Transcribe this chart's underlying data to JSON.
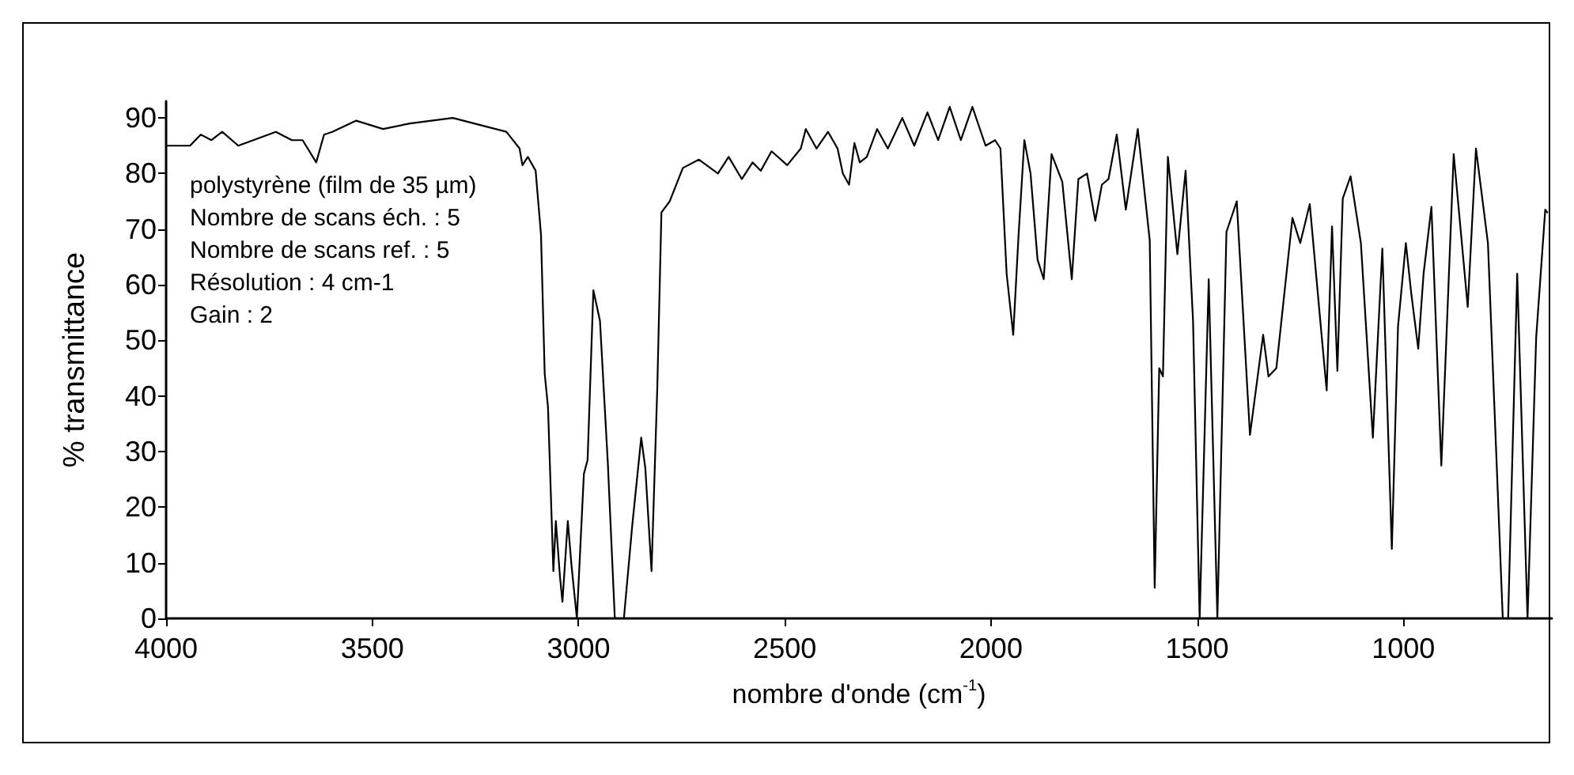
{
  "chart_data": {
    "type": "line",
    "xlabel": "nombre d'onde (cm$^{-1}$)",
    "ylabel": "% transmittance",
    "annotations": [
      "polystyrène (film de 35 µm)",
      "Nombre de scans éch. : 5",
      "Nombre de scans ref. : 5",
      "Résolution : 4 cm-1",
      "Gain : 2"
    ],
    "xlim": [
      4000,
      640
    ],
    "xticks": [
      4000,
      3500,
      3000,
      2500,
      2000,
      1500,
      1000
    ],
    "ylim": [
      0,
      93
    ],
    "yticks": [
      0,
      10,
      20,
      30,
      40,
      50,
      60,
      70,
      80,
      90
    ],
    "grid": false,
    "marker": "none",
    "line_style": "solid",
    "series": [
      {
        "color": "#000000",
        "x": [
          4000,
          3942,
          3916,
          3890,
          3864,
          3825,
          3734,
          3695,
          3669,
          3636,
          3617,
          3597,
          3539,
          3474,
          3409,
          3305,
          3227,
          3175,
          3143,
          3136,
          3123,
          3104,
          3091,
          3082,
          3074,
          3061,
          3055,
          3045,
          3039,
          3026,
          3017,
          3004,
          2987,
          2978,
          2964,
          2948,
          2929,
          2912,
          2890,
          2870,
          2848,
          2838,
          2823,
          2809,
          2799,
          2779,
          2747,
          2708,
          2662,
          2636,
          2604,
          2578,
          2558,
          2532,
          2494,
          2461,
          2449,
          2423,
          2395,
          2372,
          2359,
          2344,
          2331,
          2318,
          2301,
          2276,
          2250,
          2215,
          2186,
          2154,
          2128,
          2100,
          2073,
          2045,
          2013,
          1990,
          1977,
          1962,
          1946,
          1933,
          1919,
          1904,
          1887,
          1872,
          1853,
          1827,
          1804,
          1788,
          1767,
          1747,
          1731,
          1715,
          1695,
          1673,
          1644,
          1615,
          1603,
          1592,
          1583,
          1571,
          1548,
          1528,
          1510,
          1494,
          1472,
          1451,
          1429,
          1404,
          1372,
          1340,
          1327,
          1308,
          1269,
          1250,
          1227,
          1199,
          1186,
          1173,
          1160,
          1147,
          1128,
          1103,
          1074,
          1051,
          1028,
          1013,
          994,
          981,
          964,
          951,
          932,
          908,
          878,
          844,
          824,
          795,
          759,
          746,
          724,
          699,
          678,
          656,
          651
        ],
        "values": [
          85,
          85,
          87,
          86,
          87.5,
          85,
          87.5,
          86,
          86,
          82,
          87,
          87.5,
          89.5,
          88,
          89,
          90,
          88.5,
          87.5,
          84.5,
          81.5,
          83,
          80.5,
          69,
          44,
          38,
          8.5,
          17.5,
          7.5,
          3,
          17.5,
          9.5,
          0,
          26,
          28.5,
          59,
          53.5,
          28,
          0,
          0,
          16.5,
          32.5,
          27,
          8.5,
          41.5,
          73,
          75,
          81,
          82.5,
          80,
          83,
          79,
          82,
          80.5,
          84,
          81.5,
          84.5,
          88,
          84.5,
          87.5,
          84.5,
          80,
          78,
          85.5,
          82,
          83,
          88,
          84.5,
          90,
          85,
          91,
          86,
          92,
          86,
          92,
          85,
          86,
          84.5,
          62,
          51,
          69,
          86,
          80,
          64.5,
          61,
          83.5,
          78.5,
          61,
          79,
          80,
          71.5,
          78,
          79,
          87,
          73.5,
          88,
          68,
          5.5,
          45,
          43.5,
          83,
          65.5,
          80.5,
          53.5,
          0,
          61,
          0,
          69.5,
          75,
          33,
          51,
          43.5,
          45,
          72,
          67.5,
          74.5,
          51.5,
          41,
          70.5,
          44.5,
          75.5,
          79.5,
          67.5,
          32.5,
          66.5,
          12.5,
          52.5,
          67.5,
          58.5,
          48.5,
          62,
          74,
          27.5,
          83.5,
          56,
          84.5,
          67.5,
          0,
          0,
          62,
          0,
          50.5,
          73.5,
          73
        ]
      }
    ]
  }
}
